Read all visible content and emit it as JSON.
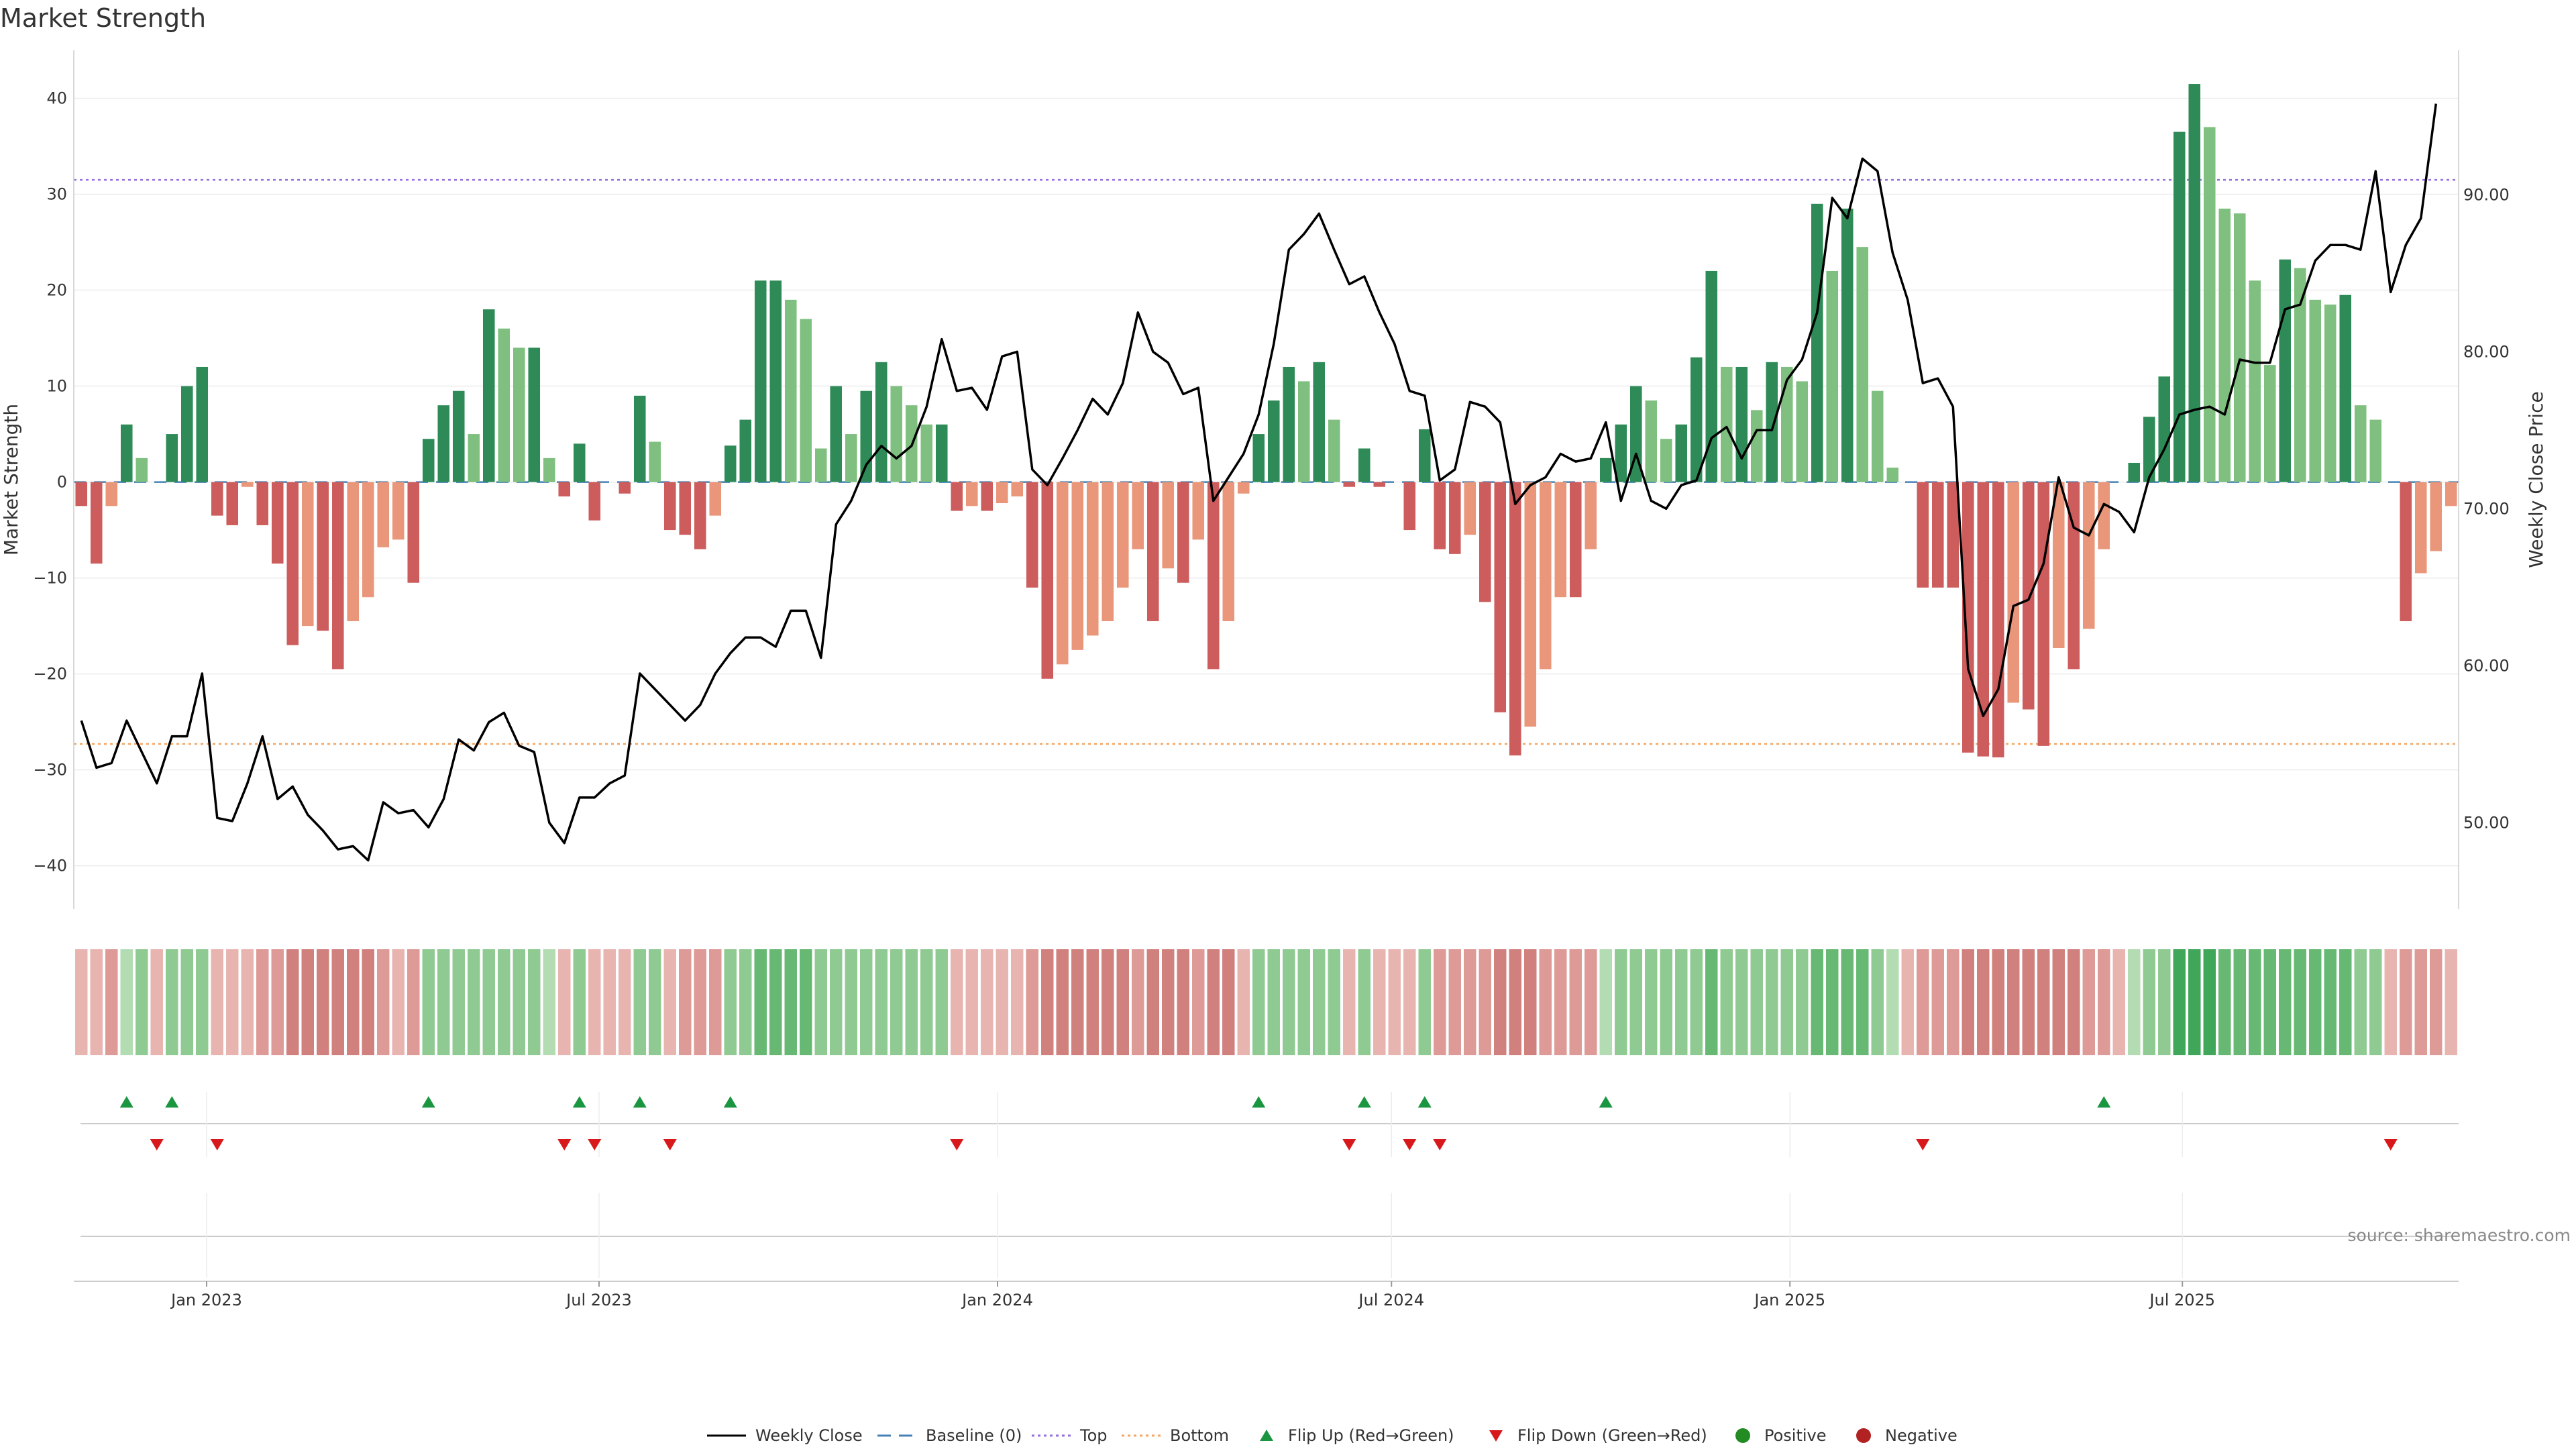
{
  "title": "Market Strength",
  "source": "source: sharemaestro.com",
  "colors": {
    "green_dark": "#2e8b57",
    "green_light": "#7fbf7f",
    "red_dark": "#cd5c5c",
    "red_light": "#e9967a",
    "top_line": "#9370db",
    "bottom_line": "#f4a460",
    "baseline": "#4682b4",
    "price_line": "#000000",
    "flip_up": "#1a9641",
    "flip_down": "#d7191c",
    "positive": "#228b22",
    "negative": "#b22222"
  },
  "legend": [
    {
      "label": "Weekly Close",
      "kind": "line"
    },
    {
      "label": "Baseline (0)",
      "kind": "dash"
    },
    {
      "label": "Top",
      "kind": "dot-top"
    },
    {
      "label": "Bottom",
      "kind": "dot-bottom"
    },
    {
      "label": "Flip Up (Red→Green)",
      "kind": "tri-up"
    },
    {
      "label": "Flip Down (Green→Red)",
      "kind": "tri-down"
    },
    {
      "label": "Positive",
      "kind": "circle-pos"
    },
    {
      "label": "Negative",
      "kind": "circle-neg"
    }
  ],
  "chart_data": {
    "type": "bar",
    "title": "Market Strength",
    "ylabel": "Market Strength",
    "y2label": "Weekly Close Price",
    "ylim": [
      -44.5,
      45
    ],
    "y2lim": [
      44.5,
      99.2
    ],
    "yticks": [
      40,
      30,
      20,
      10,
      0,
      -10,
      -20,
      -30,
      -40
    ],
    "ytick_labels": [
      "40",
      "30",
      "20",
      "10",
      "0",
      "−10",
      "−20",
      "−30",
      "−40"
    ],
    "y2ticks": [
      90,
      80,
      70,
      60,
      50
    ],
    "y2tick_labels": [
      "90.00",
      "80.00",
      "70.00",
      "60.00",
      "50.00"
    ],
    "top_level": 31.5,
    "bottom_level": -27.3,
    "weeks": 158,
    "xticks": [
      {
        "label": "Jan 2023",
        "week": 8.3
      },
      {
        "label": "Jul 2023",
        "week": 34.3
      },
      {
        "label": "Jan 2024",
        "week": 60.7
      },
      {
        "label": "Jul 2024",
        "week": 86.8
      },
      {
        "label": "Jan 2025",
        "week": 113.2
      },
      {
        "label": "Jul 2025",
        "week": 139.2
      }
    ],
    "strength": [
      -2.5,
      -8.5,
      -2.5,
      6,
      2.5,
      0,
      5,
      10,
      12,
      -3.5,
      -4.5,
      -0.5,
      -4.5,
      -8.5,
      -17,
      -15,
      -15.5,
      -19.5,
      -14.5,
      -12,
      -6.8,
      -6,
      -10.5,
      4.5,
      8,
      9.5,
      5,
      18,
      16,
      14,
      14,
      2.5,
      -1.5,
      4,
      -4,
      0,
      -1.2,
      9,
      4.2,
      -5,
      -5.5,
      -7,
      -3.5,
      3.8,
      6.5,
      21,
      21,
      19,
      17,
      3.5,
      10,
      5,
      9.5,
      12.5,
      10,
      8,
      6,
      6,
      -3,
      -2.5,
      -3,
      -2.2,
      -1.5,
      -11,
      -20.5,
      -19,
      -17.5,
      -16,
      -14.5,
      -11,
      -7,
      -14.5,
      -9,
      -10.5,
      -6,
      -19.5,
      -14.5,
      -1.2,
      5,
      8.5,
      12,
      10.5,
      12.5,
      6.5,
      -0.5,
      3.5,
      -0.5,
      0,
      -5,
      5.5,
      -7,
      -7.5,
      -5.5,
      -12.5,
      -24,
      -28.5,
      -25.5,
      -19.5,
      -12,
      -12,
      -7,
      2.5,
      6,
      10,
      8.5,
      4.5,
      6,
      13,
      22,
      12,
      12,
      7.5,
      12.5,
      12,
      10.5,
      29,
      22,
      28.5,
      24.5,
      9.5,
      1.5,
      0,
      -11,
      -11,
      -11,
      -28.2,
      -28.6,
      -28.7,
      -23,
      -23.7,
      -27.5,
      -17.3,
      -19.5,
      -15.3,
      -7,
      0,
      2,
      6.8,
      11,
      36.5,
      41.5,
      37,
      28.5,
      28,
      21,
      12.2,
      23.2,
      22.3,
      19,
      18.5,
      19.5,
      8,
      6.5,
      0,
      -14.5,
      -9.5,
      -7.2,
      -2.5
    ],
    "weekly_close": [
      56.5,
      53.5,
      53.8,
      56.5,
      54.5,
      52.5,
      55.5,
      55.5,
      59.5,
      50.3,
      50.1,
      52.5,
      55.5,
      51.5,
      52.3,
      50.5,
      49.5,
      48.3,
      48.5,
      47.6,
      51.3,
      50.6,
      50.8,
      49.7,
      51.5,
      55.3,
      54.6,
      56.4,
      57,
      54.9,
      54.5,
      50,
      48.7,
      51.6,
      51.6,
      52.5,
      53,
      59.5,
      58.5,
      57.5,
      56.5,
      57.5,
      59.5,
      60.8,
      61.8,
      61.8,
      61.2,
      63.5,
      63.5,
      60.5,
      69,
      70.5,
      72.8,
      74,
      73.2,
      74,
      76.5,
      80.8,
      77.5,
      77.7,
      76.3,
      79.7,
      80,
      72.5,
      71.5,
      73.2,
      75,
      77,
      76,
      78,
      82.5,
      80,
      79.3,
      77.3,
      77.7,
      70.5,
      72,
      73.5,
      76,
      80.5,
      86.5,
      87.5,
      88.8,
      86.5,
      84.3,
      84.8,
      82.5,
      80.5,
      77.5,
      77.2,
      71.8,
      72.5,
      76.8,
      76.5,
      75.5,
      70.3,
      71.5,
      72,
      73.5,
      73,
      73.2,
      75.5,
      70.5,
      73.5,
      70.5,
      70,
      71.5,
      71.8,
      74.5,
      75.2,
      73.2,
      75,
      75,
      78.2,
      79.5,
      82.5,
      89.8,
      88.5,
      92.3,
      91.5,
      86.3,
      83.3,
      78,
      78.3,
      76.5,
      59.8,
      56.8,
      58.5,
      63.8,
      64.2,
      66.5,
      72,
      68.8,
      68.3,
      70.3,
      69.8,
      68.5,
      72,
      73.8,
      76,
      76.3,
      76.5,
      76,
      79.5,
      79.3,
      79.3,
      82.7,
      83,
      85.8,
      86.8,
      86.8,
      86.5,
      91.5,
      83.8,
      86.8,
      88.5,
      95.8
    ],
    "heat_levels": [
      1,
      1,
      2,
      1,
      2,
      1,
      2,
      2,
      2,
      1,
      1,
      1,
      2,
      2,
      3,
      3,
      3,
      3,
      3,
      3,
      2,
      1,
      2,
      2,
      2,
      2,
      2,
      2,
      2,
      2,
      2,
      1,
      1,
      2,
      1,
      1,
      1,
      2,
      2,
      1,
      2,
      2,
      2,
      2,
      2,
      3,
      3,
      3,
      3,
      2,
      2,
      2,
      2,
      2,
      2,
      2,
      2,
      2,
      1,
      1,
      1,
      1,
      1,
      2,
      3,
      3,
      3,
      3,
      3,
      3,
      2,
      3,
      3,
      3,
      2,
      3,
      3,
      1,
      2,
      2,
      2,
      2,
      2,
      2,
      1,
      2,
      1,
      1,
      1,
      2,
      2,
      2,
      2,
      2,
      3,
      3,
      3,
      2,
      2,
      2,
      2,
      1,
      2,
      2,
      2,
      2,
      2,
      2,
      3,
      2,
      2,
      2,
      2,
      2,
      2,
      3,
      3,
      3,
      3,
      2,
      1,
      1,
      2,
      2,
      2,
      3,
      3,
      3,
      3,
      3,
      3,
      3,
      3,
      2,
      2,
      1,
      1,
      2,
      2,
      4,
      4,
      4,
      3,
      3,
      3,
      3,
      3,
      3,
      3,
      3,
      3,
      2,
      2,
      1,
      2,
      2,
      2,
      1
    ],
    "flip_up_weeks": [
      3,
      6,
      23,
      33,
      37,
      43,
      78,
      85,
      89,
      101,
      134
    ],
    "flip_down_weeks": [
      5,
      9,
      32,
      34,
      39,
      58,
      84,
      88,
      90,
      122,
      153
    ]
  }
}
